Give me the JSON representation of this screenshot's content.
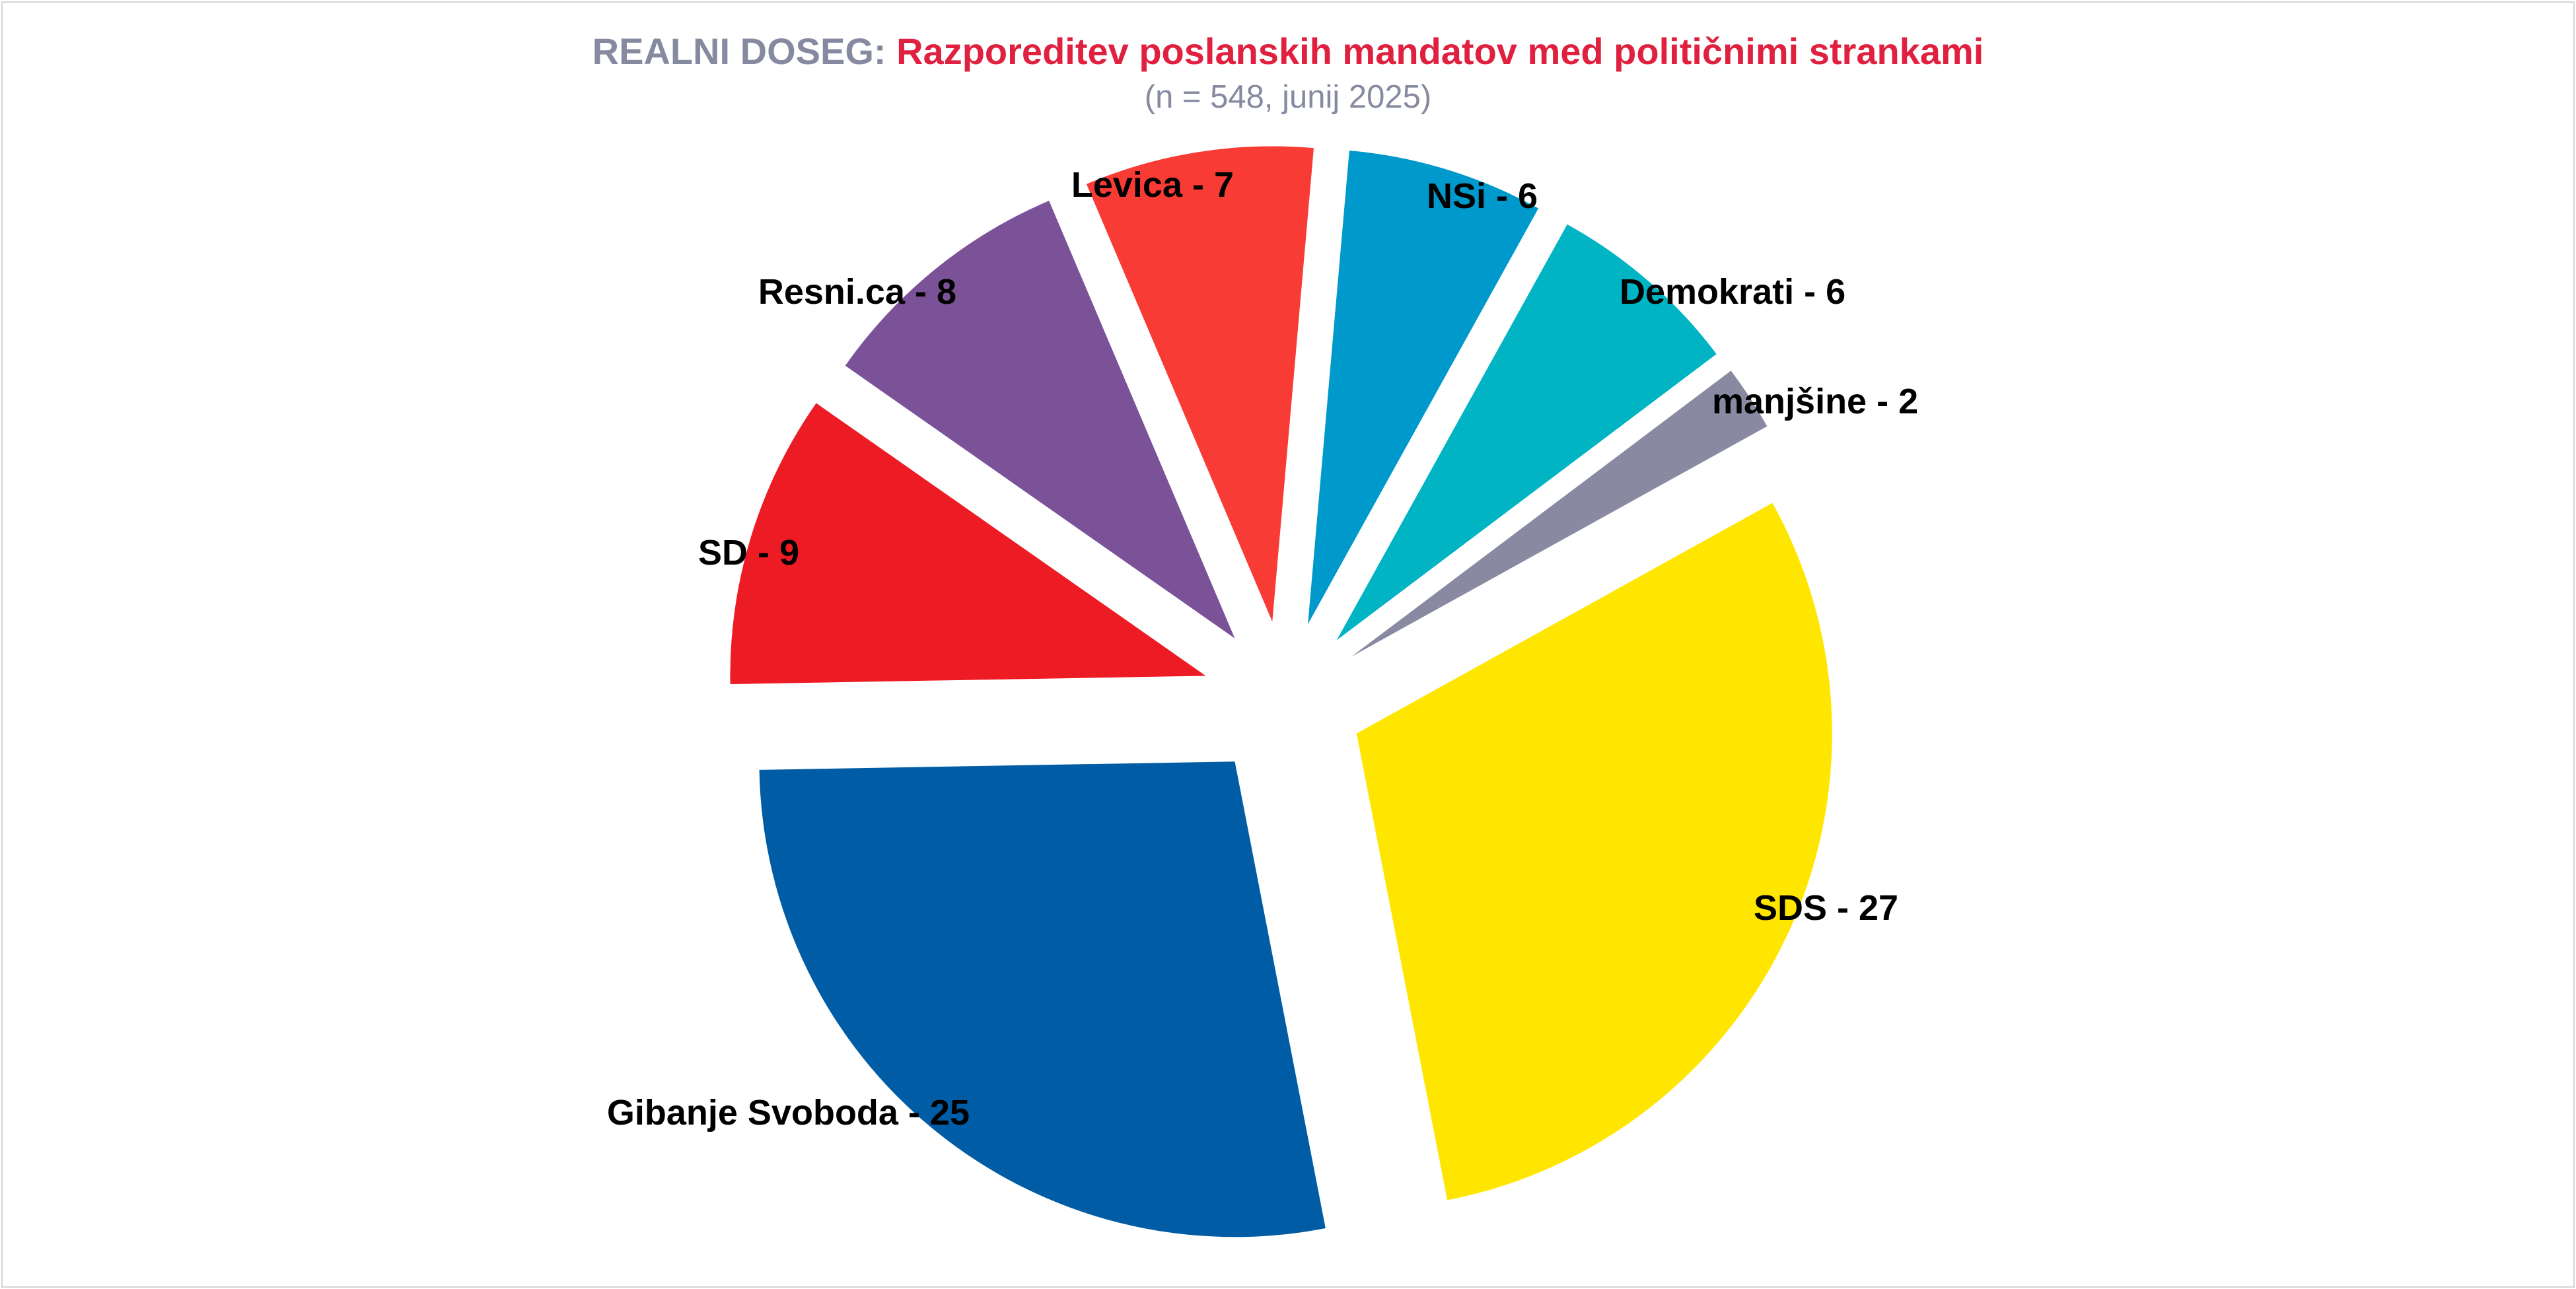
{
  "header": {
    "title_prefix": "REALNI DOSEG:",
    "title_main": "Razporeditev poslanskih mandatov med političnimi strankami",
    "subtitle": "(n = 548, junij 2025)"
  },
  "chart_data": {
    "type": "pie",
    "exploded": true,
    "start_angle_deg": 61,
    "direction": "clockwise",
    "legend": "none",
    "slices": [
      {
        "name": "SDS",
        "value": 27,
        "label": "SDS - 27",
        "color": "#ffe600"
      },
      {
        "name": "Gibanje Svoboda",
        "value": 25,
        "label": "Gibanje Svoboda - 25",
        "color": "#005ca4"
      },
      {
        "name": "SD",
        "value": 9,
        "label": "SD - 9",
        "color": "#ed1c24"
      },
      {
        "name": "Resni.ca",
        "value": 8,
        "label": "Resni.ca - 8",
        "color": "#7b5297"
      },
      {
        "name": "Levica",
        "value": 7,
        "label": "Levica - 7",
        "color": "#f93b35"
      },
      {
        "name": "NSi",
        "value": 6,
        "label": "NSi - 6",
        "color": "#0099cb"
      },
      {
        "name": "Demokrati",
        "value": 6,
        "label": "Demokrati - 6",
        "color": "#00b4c4"
      },
      {
        "name": "manjšine",
        "value": 2,
        "label": "manjšine - 2",
        "color": "#898aa2"
      }
    ]
  }
}
